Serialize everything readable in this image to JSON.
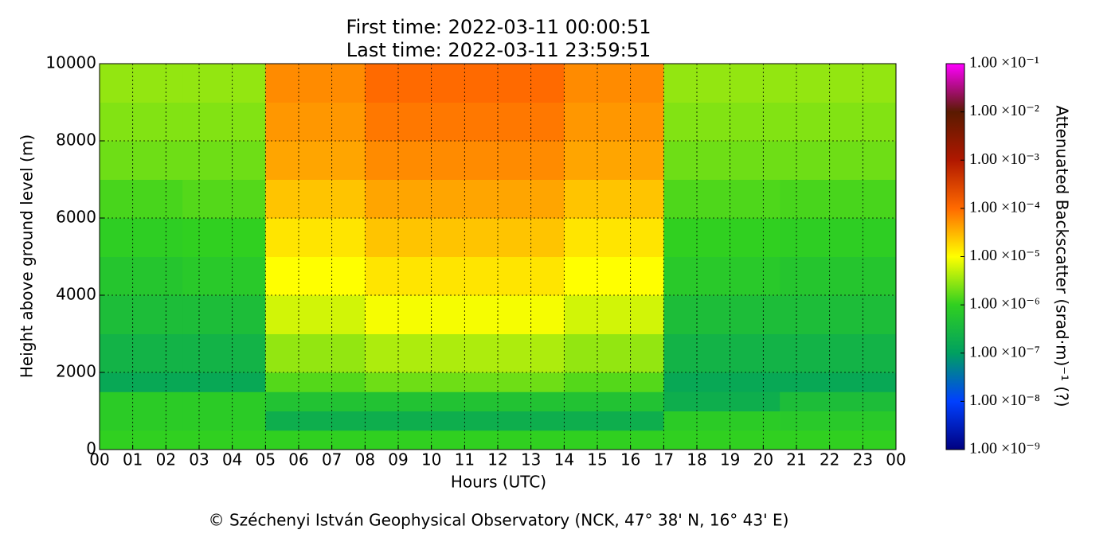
{
  "chart_data": {
    "type": "heatmap",
    "title": "First time: 2022-03-11 00:00:51",
    "subtitle": "Last time: 2022-03-11 23:59:51",
    "x_label": "Hours (UTC)",
    "y_label": "Height above ground level (m)",
    "colorbar_label": "Attenuated Backscatter (srad·m)⁻¹ (?)",
    "footer": "© Széchenyi István Geophysical Observatory (NCK, 47° 38' N, 16° 43' E)",
    "xlim": [
      0,
      24
    ],
    "xticks": [
      {
        "value": 0,
        "label": "00"
      },
      {
        "value": 1,
        "label": "01"
      },
      {
        "value": 2,
        "label": "02"
      },
      {
        "value": 3,
        "label": "03"
      },
      {
        "value": 4,
        "label": "04"
      },
      {
        "value": 5,
        "label": "05"
      },
      {
        "value": 6,
        "label": "06"
      },
      {
        "value": 7,
        "label": "07"
      },
      {
        "value": 8,
        "label": "08"
      },
      {
        "value": 9,
        "label": "09"
      },
      10,
      11,
      12,
      13,
      14,
      15,
      16,
      17,
      18,
      19,
      20,
      21,
      22,
      23,
      {
        "value": 24,
        "label": "00"
      }
    ],
    "ylim": [
      0,
      10000
    ],
    "yticks": [
      0,
      2000,
      4000,
      6000,
      8000,
      10000
    ],
    "grid": true,
    "x_bins": [
      0,
      2.5,
      5,
      8,
      11,
      14,
      17,
      20.5,
      24
    ],
    "y_bins": [
      0,
      500,
      1000,
      1500,
      2000,
      3000,
      4000,
      5000,
      6000,
      7000,
      8000,
      9000,
      10000
    ],
    "z": [
      [
        1e-06,
        1e-06,
        1e-06,
        1e-06,
        1e-06,
        1e-06,
        1e-06,
        1e-06
      ],
      [
        8e-07,
        8e-07,
        2e-07,
        2e-07,
        2e-07,
        2e-07,
        8e-07,
        7e-07
      ],
      [
        8e-07,
        8e-07,
        5e-07,
        5e-07,
        5e-07,
        5e-07,
        2e-07,
        4e-07
      ],
      [
        1.5e-07,
        1.5e-07,
        1.5e-06,
        2e-06,
        2e-06,
        1.5e-06,
        1.5e-07,
        1.5e-07
      ],
      [
        2.5e-07,
        2.5e-07,
        3e-06,
        4e-06,
        4e-06,
        3e-06,
        2.5e-07,
        2.5e-07
      ],
      [
        4e-07,
        4e-07,
        6e-06,
        9e-06,
        9e-06,
        6e-06,
        4e-07,
        4e-07
      ],
      [
        6e-07,
        7e-07,
        1e-05,
        1.5e-05,
        1.5e-05,
        1e-05,
        7e-07,
        6e-07
      ],
      [
        9e-07,
        1e-06,
        1.5e-05,
        2.5e-05,
        2.5e-05,
        1.5e-05,
        1e-06,
        9e-07
      ],
      [
        1.3e-06,
        1.5e-06,
        2.5e-05,
        4e-05,
        4e-05,
        2.5e-05,
        1.4e-06,
        1.3e-06
      ],
      [
        2e-06,
        2e-06,
        4e-05,
        6e-05,
        6e-05,
        4e-05,
        2e-06,
        2e-06
      ],
      [
        2.5e-06,
        2.5e-06,
        5e-05,
        8e-05,
        8e-05,
        5e-05,
        2.5e-06,
        2.5e-06
      ],
      [
        3e-06,
        3e-06,
        6e-05,
        0.0001,
        0.0001,
        6e-05,
        3e-06,
        3e-06
      ]
    ],
    "zscale": "log",
    "zlim": [
      1e-09,
      0.1
    ],
    "zticks": [
      {
        "value": 1e-09,
        "label": "1.00 ×10⁻⁹"
      },
      {
        "value": 1e-08,
        "label": "1.00 ×10⁻⁸"
      },
      {
        "value": 1e-07,
        "label": "1.00 ×10⁻⁷"
      },
      {
        "value": 1e-06,
        "label": "1.00 ×10⁻⁶"
      },
      {
        "value": 1e-05,
        "label": "1.00 ×10⁻⁵"
      },
      {
        "value": 0.0001,
        "label": "1.00 ×10⁻⁴"
      },
      {
        "value": 0.001,
        "label": "1.00 ×10⁻³"
      },
      {
        "value": 0.01,
        "label": "1.00 ×10⁻²"
      },
      {
        "value": 0.1,
        "label": "1.00 ×10⁻¹"
      }
    ],
    "colormap": [
      "#000080",
      "#0040ff",
      "#00a060",
      "#30d020",
      "#ffff00",
      "#ff6a00",
      "#b01800",
      "#5a1a00",
      "#ff00ff"
    ]
  }
}
